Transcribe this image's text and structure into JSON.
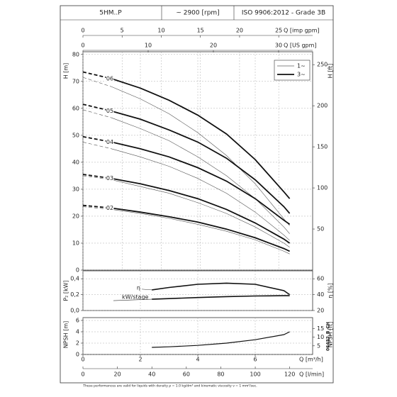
{
  "chart_data": {
    "type": "line",
    "header": [
      "5HM..P",
      "~ 2900 [rpm]",
      "ISO 9906:2012 - Grade 3B"
    ],
    "x": [
      0,
      1,
      2,
      3,
      4,
      5,
      6,
      7,
      7.2
    ],
    "xlim": [
      0,
      8
    ],
    "xticks": [
      0,
      2,
      4,
      6
    ],
    "xlabel": "Q [m³/h]",
    "x_lmin": {
      "label": "Q [l/min]",
      "lim": [
        0,
        133.3
      ],
      "ticks": [
        0,
        20,
        40,
        60,
        80,
        100,
        120
      ]
    },
    "x_imp": {
      "label": "Q [imp gpm]",
      "lim": [
        0,
        29.33
      ],
      "ticks": [
        0,
        5,
        10,
        15,
        20,
        25
      ]
    },
    "x_us": {
      "label": "Q [US gpm]",
      "lim": [
        0,
        35.22
      ],
      "ticks": [
        0,
        10,
        20,
        30
      ]
    },
    "ylabel": "H [m]",
    "ylim": [
      0,
      81
    ],
    "yticks": [
      0,
      10,
      20,
      30,
      40,
      50,
      60,
      70,
      80
    ],
    "y2label": "H [ft]",
    "y2lim": [
      0,
      265.7
    ],
    "y2ticks": [
      50,
      100,
      150,
      200,
      250
    ],
    "grid": true,
    "legend": {
      "position": "upper right",
      "entries": [
        "1~",
        "3~"
      ]
    },
    "dashed_to": 1,
    "series": [
      {
        "name": "06",
        "three_phase": [
          73.5,
          71,
          67.5,
          63,
          57.5,
          50.5,
          41,
          29,
          26.5
        ],
        "single_phase": [
          71.5,
          68,
          63.5,
          58,
          51,
          42.5,
          32,
          19,
          16.5
        ]
      },
      {
        "name": "05",
        "three_phase": [
          61.5,
          59,
          56,
          52,
          47.5,
          41.5,
          33.5,
          23.5,
          21
        ],
        "single_phase": [
          59.5,
          56.5,
          52.5,
          48,
          42,
          35,
          26.5,
          16,
          13.5
        ]
      },
      {
        "name": "04",
        "three_phase": [
          49.5,
          47.5,
          45,
          42,
          38,
          33,
          26.5,
          18.5,
          17
        ],
        "single_phase": [
          47.5,
          45,
          42,
          38.5,
          34,
          28.5,
          21.5,
          13,
          11
        ]
      },
      {
        "name": "03",
        "three_phase": [
          35.5,
          34,
          32,
          29.5,
          26.5,
          22.5,
          17.5,
          11.5,
          10
        ],
        "single_phase": [
          35,
          33.5,
          31,
          28.5,
          25,
          21,
          16,
          10,
          8.5
        ]
      },
      {
        "name": "02",
        "three_phase": [
          24,
          23,
          21.5,
          19.8,
          17.8,
          15.2,
          12,
          8,
          7
        ],
        "single_phase": [
          23.5,
          22.5,
          21,
          19.2,
          17,
          14.4,
          11.2,
          7,
          6
        ]
      }
    ],
    "power": {
      "x": [
        2.4,
        3,
        4,
        5,
        6,
        7,
        7.2
      ],
      "ylabel": "P₂ [kW]",
      "ylim": [
        0,
        0.5
      ],
      "yticks": [
        {
          "value": 0,
          "label": "0,0"
        },
        {
          "value": 0.2,
          "label": "0,2"
        },
        {
          "value": 0.4,
          "label": "0,4"
        }
      ],
      "y2label": "η [%]",
      "y2lim": [
        20,
        70
      ],
      "y2ticks": [
        20,
        40,
        60
      ],
      "efficiency": {
        "name": "η",
        "values": [
          46,
          49,
          53,
          54.5,
          53,
          45,
          40
        ]
      },
      "kw": {
        "name": "kW/stage",
        "values": [
          0.142,
          0.15,
          0.163,
          0.175,
          0.183,
          0.187,
          0.187
        ]
      }
    },
    "npsh": {
      "x": [
        2.4,
        3,
        4,
        5,
        6,
        7,
        7.2
      ],
      "ylabel": "NPSH [m]",
      "ylim": [
        0,
        6.5
      ],
      "yticks": [
        0,
        2,
        4,
        6
      ],
      "y2label": "NPSH [ft]",
      "y2lim": [
        0,
        21.33
      ],
      "y2ticks": [
        5,
        10,
        15
      ],
      "values": [
        1.25,
        1.35,
        1.6,
        2.0,
        2.6,
        3.5,
        4.0
      ]
    },
    "code": "06432_B_CH",
    "footnote": "These performances are valid for liquids with density ρ = 1.0 kg/dm³ and kinematic viscosity ν = 1 mm²/sec."
  }
}
